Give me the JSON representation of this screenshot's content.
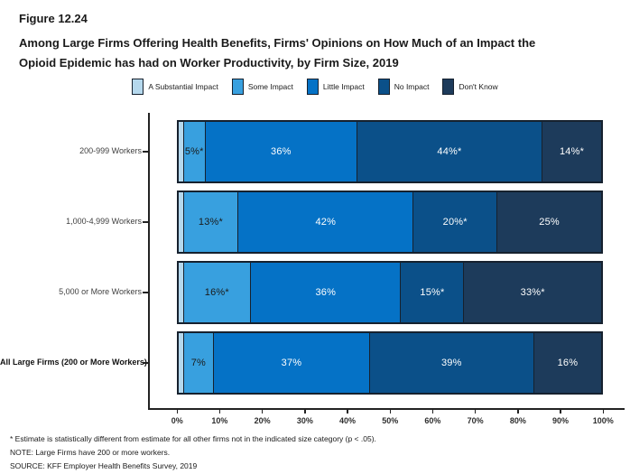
{
  "figure": {
    "label": "Figure 12.24",
    "title_lines": [
      "Among Large Firms Offering Health Benefits, Firms' Opinions on How Much of an Impact the",
      "Opioid Epidemic has had on Worker Productivity, by Firm Size, 2019"
    ]
  },
  "legend": {
    "items": [
      {
        "label": "A Substantial Impact",
        "color": "#B5D8ED"
      },
      {
        "label": "Some Impact",
        "color": "#38A0DF"
      },
      {
        "label": "Little Impact",
        "color": "#0572C6"
      },
      {
        "label": "No Impact",
        "color": "#0B5089"
      },
      {
        "label": "Don't Know",
        "color": "#1D3B5B"
      }
    ]
  },
  "chart_data": {
    "type": "bar",
    "orientation": "horizontal",
    "stacked": true,
    "title": "Among Large Firms Offering Health Benefits, Firms' Opinions on How Much of an Impact the Opioid Epidemic has had on Worker Productivity, by Firm Size, 2019",
    "xlabel": "",
    "ylabel": "",
    "xlim": [
      0,
      100
    ],
    "grid": false,
    "legend_position": "top",
    "x_ticks": [
      "0%",
      "10%",
      "20%",
      "30%",
      "40%",
      "50%",
      "60%",
      "70%",
      "80%",
      "90%",
      "100%"
    ],
    "categories": [
      "200-999 Workers",
      "1,000-4,999 Workers",
      "5,000 or More Workers",
      "All Large Firms (200 or More Workers)"
    ],
    "category_bold": [
      false,
      false,
      false,
      true
    ],
    "series": [
      {
        "name": "A Substantial Impact",
        "color": "#B5D8ED",
        "values": [
          1,
          1,
          1,
          1
        ],
        "labels": [
          "",
          "",
          "",
          ""
        ],
        "label_color": "#1a1a1a"
      },
      {
        "name": "Some Impact",
        "color": "#38A0DF",
        "values": [
          5,
          13,
          16,
          7
        ],
        "labels": [
          "5%*",
          "13%*",
          "16%*",
          "7%"
        ],
        "label_color": "#1a1a1a"
      },
      {
        "name": "Little Impact",
        "color": "#0572C6",
        "values": [
          36,
          42,
          36,
          37
        ],
        "labels": [
          "36%",
          "42%",
          "36%",
          "37%"
        ],
        "label_color": "#ffffff"
      },
      {
        "name": "No Impact",
        "color": "#0B5089",
        "values": [
          44,
          20,
          15,
          39
        ],
        "labels": [
          "44%*",
          "20%*",
          "15%*",
          "39%"
        ],
        "label_color": "#ffffff"
      },
      {
        "name": "Don't Know",
        "color": "#1D3B5B",
        "values": [
          14,
          25,
          33,
          16
        ],
        "labels": [
          "14%*",
          "25%",
          "33%*",
          "16%"
        ],
        "label_color": "#ffffff"
      }
    ]
  },
  "footnotes": [
    "* Estimate is statistically different from estimate for all other firms not in the indicated size category (p < .05).",
    "NOTE: Large Firms have 200 or more workers.",
    "SOURCE: KFF Employer Health Benefits Survey, 2019"
  ]
}
